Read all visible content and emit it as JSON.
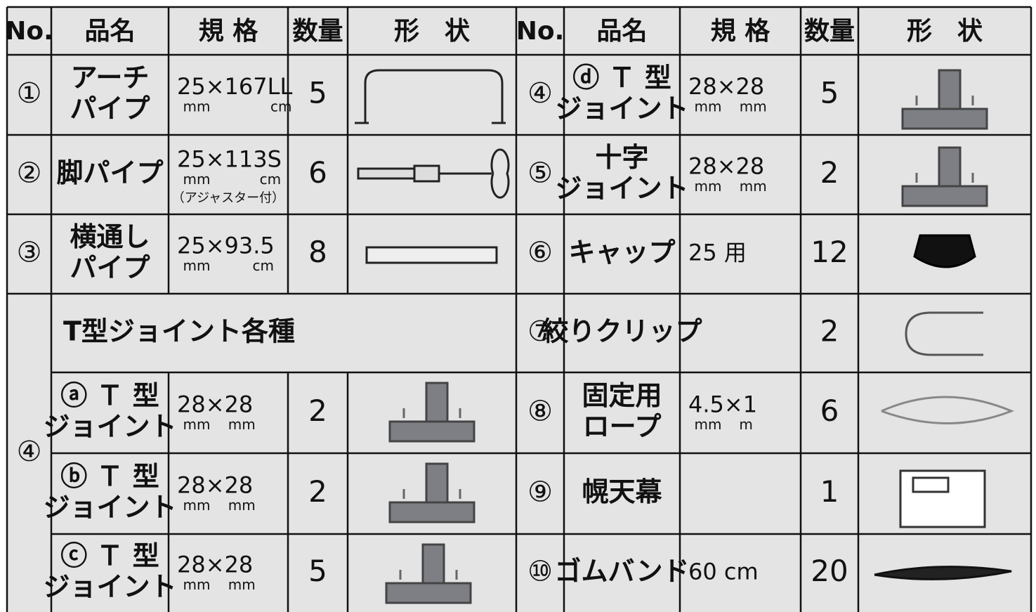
{
  "header": {
    "left": [
      "No.",
      "品名",
      "規 格",
      "数量",
      "形　状"
    ],
    "right": [
      "No.",
      "品名",
      "規 格",
      "数量",
      "形　状"
    ]
  },
  "left_rows": [
    {
      "no": "①",
      "name": [
        "アーチ",
        "パイプ"
      ],
      "spec": "25×167LL",
      "units": [
        "mm",
        "cm"
      ],
      "qty": 5
    },
    {
      "no": "②",
      "name": [
        "脚パイプ"
      ],
      "spec": "25×113S",
      "units": [
        "mm",
        "cm"
      ],
      "note": "（アジャスター付）",
      "qty": 6
    },
    {
      "no": "③",
      "name": [
        "横通し",
        "パイプ"
      ],
      "spec": "25×93.5",
      "units": [
        "mm",
        "cm"
      ],
      "qty": 8
    }
  ],
  "group": {
    "no": "④",
    "title": "T型ジョイント各種",
    "items": [
      {
        "name": [
          "ⓐ Ｔ 型",
          "ジョイント"
        ],
        "spec": "28×28",
        "units": [
          "mm",
          "mm"
        ],
        "qty": 2
      },
      {
        "name": [
          "ⓑ Ｔ 型",
          "ジョイント"
        ],
        "spec": "28×28",
        "units": [
          "mm",
          "mm"
        ],
        "qty": 2
      },
      {
        "name": [
          "ⓒ Ｔ 型",
          "ジョイント"
        ],
        "spec": "28×28",
        "units": [
          "mm",
          "mm"
        ],
        "qty": 5
      }
    ]
  },
  "right_rows": [
    {
      "no": "④",
      "name": [
        "ⓓ Ｔ 型",
        "ジョイント"
      ],
      "spec": "28×28",
      "units": [
        "mm",
        "mm"
      ],
      "qty": 5
    },
    {
      "no": "⑤",
      "name": [
        "十字",
        "ジョイント"
      ],
      "spec": "28×28",
      "units": [
        "mm",
        "mm"
      ],
      "qty": 2
    },
    {
      "no": "⑥",
      "name": [
        "キャップ"
      ],
      "spec": "25 用",
      "qty": 12
    },
    {
      "no": "⑦",
      "name": [
        "絞りクリップ"
      ],
      "qty": 2
    },
    {
      "no": "⑧",
      "name": [
        "固定用",
        "ロープ"
      ],
      "spec": "4.5×1",
      "units": [
        "mm",
        "m"
      ],
      "qty": 6
    },
    {
      "no": "⑨",
      "name": [
        "幌天幕"
      ],
      "qty": 1
    },
    {
      "no": "⑩",
      "name": [
        "ゴムバンド"
      ],
      "spec": "60 cm",
      "qty": 20
    }
  ]
}
